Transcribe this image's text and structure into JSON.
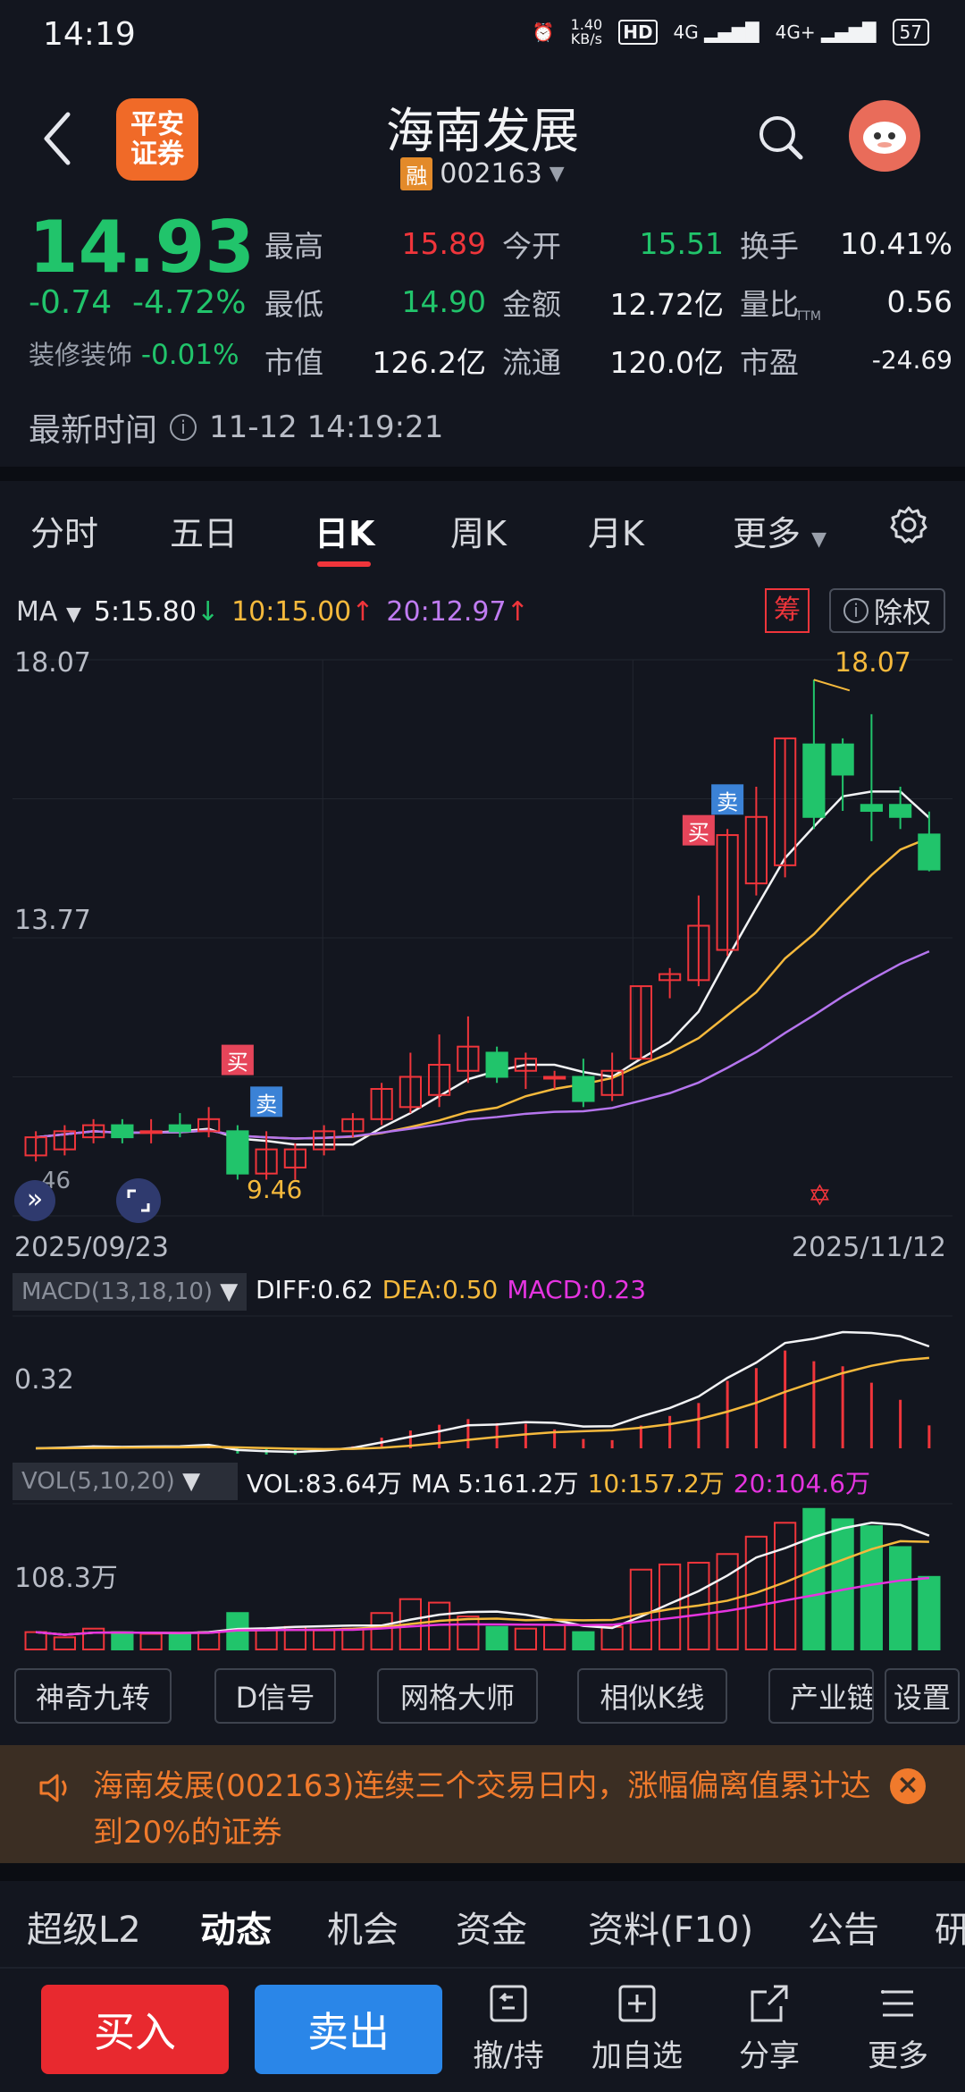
{
  "status_bar": {
    "time": "14:19",
    "net_speed": "1.40",
    "net_unit": "KB/s",
    "hd": "HD",
    "sig1": "4G",
    "sig2": "4G+",
    "battery": "57"
  },
  "header": {
    "logo_line1": "平安",
    "logo_line2": "证券",
    "title": "海南发展",
    "rong_badge": "融",
    "code": "002163"
  },
  "quote": {
    "price": "14.93",
    "change": "-0.74",
    "change_pct": "-4.72%",
    "sector_name": "装修装饰",
    "sector_change": "-0.01%",
    "stats": [
      {
        "label": "最高",
        "value": "15.89",
        "color": "#f0353b"
      },
      {
        "label": "今开",
        "value": "15.51",
        "color": "#21c46b"
      },
      {
        "label": "换手",
        "value": "10.41%",
        "color": "#f2f3f5"
      },
      {
        "label": "最低",
        "value": "14.90",
        "color": "#21c46b"
      },
      {
        "label": "金额",
        "value": "12.72亿",
        "color": "#f2f3f5"
      },
      {
        "label": "量比",
        "value": "0.56",
        "color": "#f2f3f5"
      },
      {
        "label": "市值",
        "value": "126.2亿",
        "color": "#f2f3f5"
      },
      {
        "label": "流通",
        "value": "120.0亿",
        "color": "#f2f3f5"
      },
      {
        "label": "市盈",
        "value": "-24.69",
        "color": "#f2f3f5"
      }
    ],
    "pe_sup": "TTM",
    "latest_label": "最新时间",
    "latest_time": "11-12 14:19:21"
  },
  "tabs": [
    "分时",
    "五日",
    "日K",
    "周K",
    "月K",
    "更多"
  ],
  "active_tab": "日K",
  "ma": {
    "label": "MA",
    "ma5": "5:15.80",
    "ma10": "10:15.00",
    "ma20": "20:12.97"
  },
  "chart_buttons": {
    "chou": "筹",
    "chuquan": "除权"
  },
  "chart_data": {
    "type": "candlestick",
    "y_top_label": "18.07",
    "y_mid_label": "13.77",
    "high_marker": "18.07",
    "low_marker": "9.46",
    "low_left_tag": "46",
    "date_start": "2025/09/23",
    "date_end": "2025/11/12",
    "candles": [
      {
        "o": 10.2,
        "c": 10.5,
        "h": 10.6,
        "l": 10.1
      },
      {
        "o": 10.3,
        "c": 10.6,
        "h": 10.7,
        "l": 10.2
      },
      {
        "o": 10.5,
        "c": 10.7,
        "h": 10.8,
        "l": 10.4
      },
      {
        "o": 10.7,
        "c": 10.5,
        "h": 10.8,
        "l": 10.4
      },
      {
        "o": 10.6,
        "c": 10.6,
        "h": 10.8,
        "l": 10.4
      },
      {
        "o": 10.7,
        "c": 10.6,
        "h": 10.9,
        "l": 10.5
      },
      {
        "o": 10.6,
        "c": 10.8,
        "h": 11.0,
        "l": 10.5
      },
      {
        "o": 10.6,
        "c": 9.9,
        "h": 10.7,
        "l": 9.8
      },
      {
        "o": 9.9,
        "c": 10.3,
        "h": 10.6,
        "l": 9.8
      },
      {
        "o": 10.0,
        "c": 10.3,
        "h": 10.4,
        "l": 9.8
      },
      {
        "o": 10.3,
        "c": 10.6,
        "h": 10.7,
        "l": 10.2
      },
      {
        "o": 10.6,
        "c": 10.8,
        "h": 10.9,
        "l": 10.5
      },
      {
        "o": 10.8,
        "c": 11.3,
        "h": 11.4,
        "l": 10.7
      },
      {
        "o": 11.0,
        "c": 11.5,
        "h": 11.9,
        "l": 10.9
      },
      {
        "o": 11.2,
        "c": 11.7,
        "h": 12.2,
        "l": 11.0
      },
      {
        "o": 11.6,
        "c": 12.0,
        "h": 12.5,
        "l": 11.4
      },
      {
        "o": 11.9,
        "c": 11.5,
        "h": 12.0,
        "l": 11.4
      },
      {
        "o": 11.6,
        "c": 11.8,
        "h": 11.9,
        "l": 11.3
      },
      {
        "o": 11.5,
        "c": 11.5,
        "h": 11.6,
        "l": 11.3
      },
      {
        "o": 11.5,
        "c": 11.1,
        "h": 11.8,
        "l": 11.0
      },
      {
        "o": 11.2,
        "c": 11.6,
        "h": 11.9,
        "l": 11.1
      },
      {
        "o": 11.8,
        "c": 13.0,
        "h": 13.0,
        "l": 11.8
      },
      {
        "o": 13.1,
        "c": 13.2,
        "h": 13.3,
        "l": 12.8
      },
      {
        "o": 13.1,
        "c": 14.0,
        "h": 14.5,
        "l": 13.0
      },
      {
        "o": 13.6,
        "c": 15.5,
        "h": 15.6,
        "l": 13.5
      },
      {
        "o": 14.7,
        "c": 15.8,
        "h": 16.3,
        "l": 14.5
      },
      {
        "o": 15.0,
        "c": 17.1,
        "h": 17.1,
        "l": 14.8
      },
      {
        "o": 17.0,
        "c": 15.8,
        "h": 18.07,
        "l": 15.6
      },
      {
        "o": 17.0,
        "c": 16.5,
        "h": 17.1,
        "l": 15.9
      },
      {
        "o": 16.0,
        "c": 15.9,
        "h": 17.5,
        "l": 15.4
      },
      {
        "o": 16.0,
        "c": 15.8,
        "h": 16.3,
        "l": 15.6
      },
      {
        "o": 15.51,
        "c": 14.93,
        "h": 15.89,
        "l": 14.9
      }
    ],
    "signals": [
      {
        "label": "买",
        "index": 7,
        "color": "#e6455a"
      },
      {
        "label": "卖",
        "index": 8,
        "color": "#3b82d6"
      },
      {
        "label": "买",
        "index": 23,
        "color": "#e6455a"
      },
      {
        "label": "卖",
        "index": 24,
        "color": "#3b82d6"
      }
    ],
    "macd": {
      "title": "MACD(13,18,10)",
      "diff": "DIFF:0.62",
      "dea": "DEA:0.50",
      "macd": "MACD:0.23",
      "y_label": "0.32"
    },
    "vol": {
      "title": "VOL(5,10,20)",
      "vol": "VOL:83.64万",
      "ma5": "MA 5:161.2万",
      "ma10": "10:157.2万",
      "ma20": "20:104.6万",
      "y_label": "108.3万"
    }
  },
  "tools": [
    "神奇九转",
    "D信号",
    "网格大师",
    "相似K线",
    "产业链",
    "设置"
  ],
  "banner": {
    "text": "海南发展(002163)连续三个交易日内，涨幅偏离值累计达到20%的证券"
  },
  "bottom_tabs": [
    "超级L2",
    "动态",
    "机会",
    "资金",
    "资料(F10)",
    "公告",
    "研"
  ],
  "active_bottom_tab": "动态",
  "bottom_bar": {
    "buy": "买入",
    "sell": "卖出",
    "actions": [
      "撤/持",
      "加自选",
      "分享",
      "更多"
    ]
  }
}
